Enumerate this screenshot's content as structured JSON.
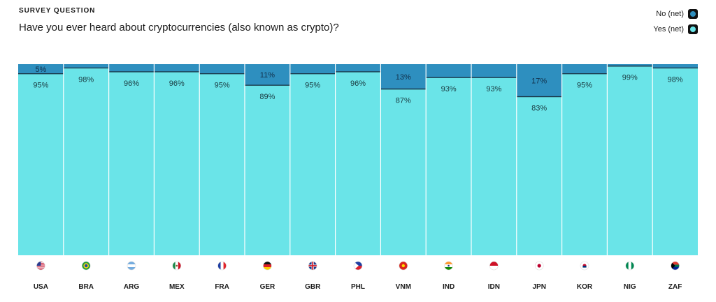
{
  "header": {
    "eyebrow": "SURVEY QUESTION",
    "question": "Have you ever heard about cryptocurrencies (also known as crypto)?"
  },
  "legend": {
    "no_label": "No (net)",
    "yes_label": "Yes (net)"
  },
  "colors": {
    "no": "#2e8fbf",
    "yes": "#6ae4e8",
    "divider": "#1b3a4b"
  },
  "chart_data": {
    "type": "bar",
    "stacked": true,
    "normalized_to": 100,
    "categories": [
      "USA",
      "BRA",
      "ARG",
      "MEX",
      "FRA",
      "GER",
      "GBR",
      "PHL",
      "VNM",
      "IND",
      "IDN",
      "JPN",
      "KOR",
      "NIG",
      "ZAF"
    ],
    "category_icons": [
      "flag-usa-icon",
      "flag-bra-icon",
      "flag-arg-icon",
      "flag-mex-icon",
      "flag-fra-icon",
      "flag-ger-icon",
      "flag-gbr-icon",
      "flag-phl-icon",
      "flag-vnm-icon",
      "flag-ind-icon",
      "flag-idn-icon",
      "flag-jpn-icon",
      "flag-kor-icon",
      "flag-nig-icon",
      "flag-zaf-icon"
    ],
    "series": [
      {
        "name": "No (net)",
        "values": [
          5,
          2,
          4,
          4,
          5,
          11,
          5,
          4,
          13,
          7,
          7,
          17,
          5,
          1,
          2
        ],
        "labels": [
          "5%",
          "",
          "",
          "",
          "",
          "11%",
          "",
          "",
          "13%",
          "",
          "",
          "17%",
          "",
          "",
          ""
        ]
      },
      {
        "name": "Yes (net)",
        "values": [
          95,
          98,
          96,
          96,
          95,
          89,
          95,
          96,
          87,
          93,
          93,
          83,
          95,
          99,
          98
        ],
        "labels": [
          "95%",
          "98%",
          "96%",
          "96%",
          "95%",
          "89%",
          "95%",
          "96%",
          "87%",
          "93%",
          "93%",
          "83%",
          "95%",
          "99%",
          "98%"
        ]
      }
    ],
    "ylim": [
      0,
      100
    ],
    "grid": false,
    "legend_position": "top-right"
  }
}
